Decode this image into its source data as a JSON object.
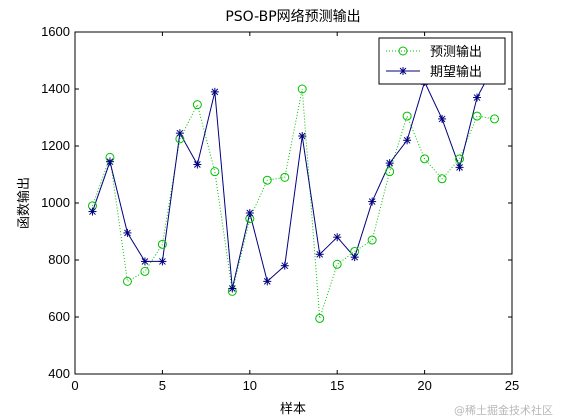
{
  "chart_data": {
    "type": "line",
    "title": "PSO-BP网络预测输出",
    "xlabel": "样本",
    "ylabel": "函数输出",
    "xlim": [
      0,
      25
    ],
    "ylim": [
      400,
      1600
    ],
    "x_ticks": [
      0,
      5,
      10,
      15,
      20,
      25
    ],
    "y_ticks": [
      400,
      600,
      800,
      1000,
      1200,
      1400,
      1600
    ],
    "legend_position": "top-right",
    "grid": false,
    "x": [
      1,
      2,
      3,
      4,
      5,
      6,
      7,
      8,
      9,
      10,
      11,
      12,
      13,
      14,
      15,
      16,
      17,
      18,
      19,
      20,
      21,
      22,
      23,
      24
    ],
    "series": [
      {
        "name": "预测输出",
        "color": "#00c000",
        "style": "dotted",
        "marker": "circle",
        "values": [
          990,
          1160,
          725,
          760,
          855,
          1225,
          1345,
          1110,
          690,
          945,
          1080,
          1090,
          1400,
          595,
          785,
          830,
          870,
          1110,
          1305,
          1155,
          1085,
          1155,
          1305,
          1295
        ]
      },
      {
        "name": "期望输出",
        "color": "#00007f",
        "style": "solid",
        "marker": "star",
        "values": [
          970,
          1145,
          895,
          795,
          795,
          1245,
          1135,
          1390,
          700,
          965,
          725,
          780,
          1235,
          820,
          880,
          810,
          1005,
          1140,
          1220,
          1425,
          1295,
          1125,
          1370,
          1485
        ]
      }
    ]
  },
  "watermark": "@稀土掘金技术社区"
}
